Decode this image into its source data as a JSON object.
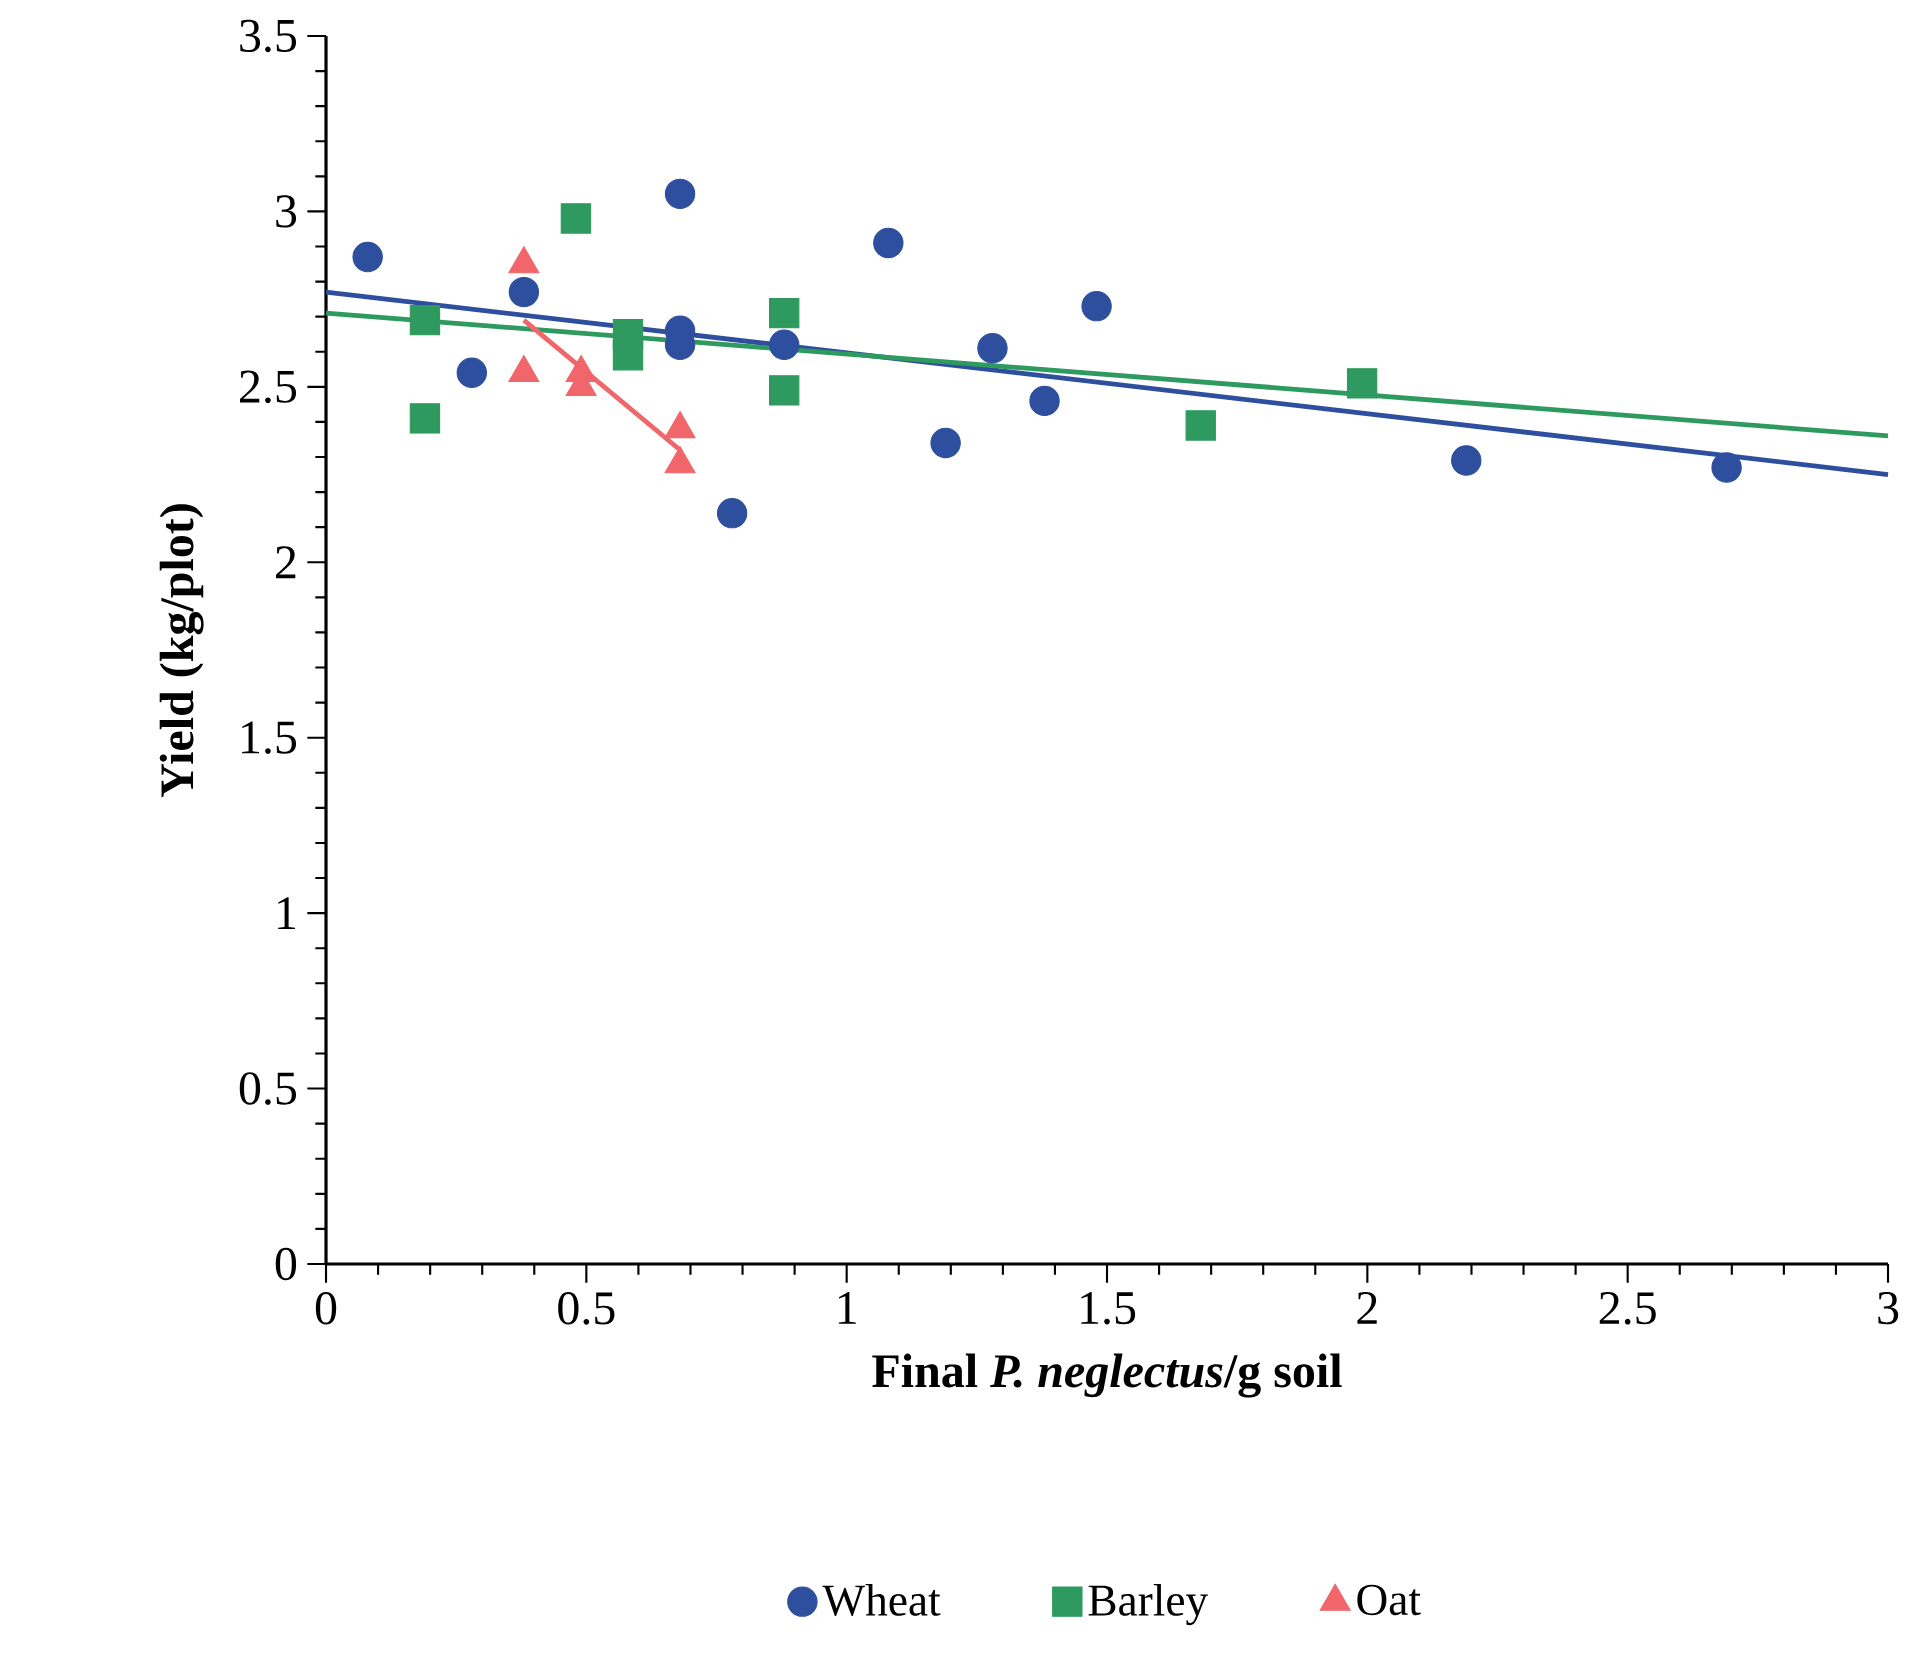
{
  "chart_data": {
    "type": "scatter",
    "xlabel": "Final *P. neglectus*/g soil",
    "ylabel": "Yield (kg/plot)",
    "xlim": [
      0,
      3
    ],
    "ylim": [
      0,
      3.5
    ],
    "xticks": [
      0,
      0.5,
      1,
      1.5,
      2,
      2.5,
      3
    ],
    "yticks": [
      0,
      0.5,
      1,
      1.5,
      2,
      2.5,
      3,
      3.5
    ],
    "grid": false,
    "legend": "bottom",
    "series": [
      {
        "name": "Wheat",
        "color": "#2e4f9e",
        "marker": "circle",
        "x": [
          0.08,
          0.38,
          0.28,
          0.68,
          0.68,
          0.68,
          0.88,
          0.78,
          1.08,
          1.19,
          1.28,
          1.38,
          1.48,
          2.19,
          2.69
        ],
        "values": [
          2.87,
          2.77,
          2.54,
          3.05,
          2.66,
          2.62,
          2.62,
          2.14,
          2.91,
          2.34,
          2.61,
          2.46,
          2.73,
          2.29,
          2.27
        ]
      },
      {
        "name": "Barley",
        "color": "#2e9a5f",
        "marker": "square",
        "x": [
          0.19,
          0.19,
          0.48,
          0.58,
          0.58,
          0.88,
          0.88,
          1.68,
          1.99
        ],
        "values": [
          2.69,
          2.41,
          2.98,
          2.65,
          2.59,
          2.71,
          2.49,
          2.39,
          2.51
        ]
      },
      {
        "name": "Oat",
        "color": "#f0666b",
        "marker": "triangle",
        "x": [
          0.38,
          0.38,
          0.49,
          0.49,
          0.68,
          0.68
        ],
        "values": [
          2.85,
          2.54,
          2.54,
          2.5,
          2.38,
          2.28
        ]
      },
      {
        "type": "line",
        "color": "#2e4f9e",
        "marker": "none",
        "line_style": "solid",
        "x": [
          0,
          3
        ],
        "values": [
          2.77,
          2.25
        ]
      },
      {
        "type": "line",
        "color": "#2e9a5f",
        "marker": "none",
        "line_style": "solid",
        "x": [
          0,
          3
        ],
        "values": [
          2.71,
          2.36
        ]
      },
      {
        "type": "line",
        "color": "#f0666b",
        "marker": "none",
        "line_style": "solid",
        "x": [
          0.38,
          0.68
        ],
        "values": [
          2.69,
          2.32
        ]
      }
    ]
  }
}
